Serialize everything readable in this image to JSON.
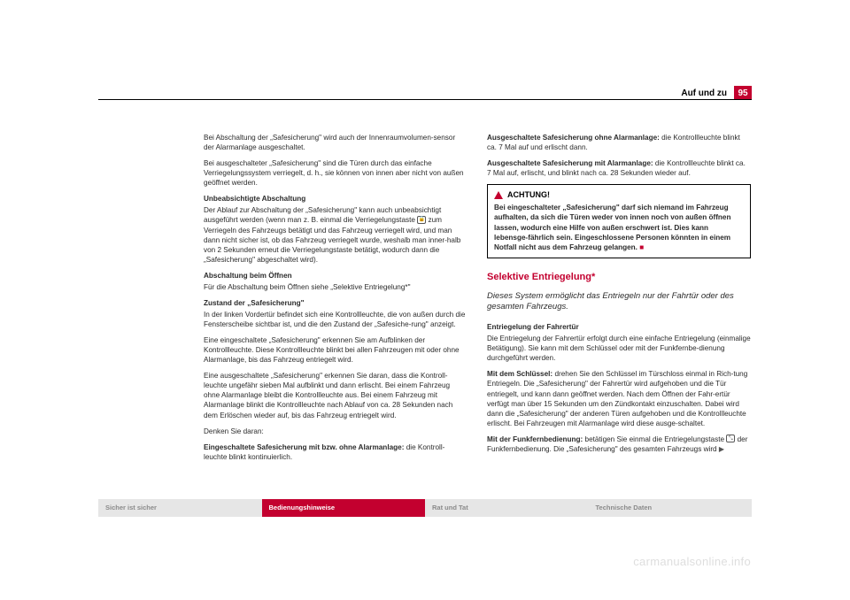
{
  "colors": {
    "brand_red": "#c3002f",
    "text": "#2b2b2b",
    "footer_gray_bg": "#e6e6e6",
    "footer_gray_text": "#8a8a8a",
    "watermark": "#dedede",
    "rule": "#000000"
  },
  "header": {
    "title": "Auf und zu",
    "page_number": "95"
  },
  "left_column": {
    "p1": "Bei Abschaltung der „Safesicherung\" wird auch der Innenraumvolumen-sensor der Alarmanlage ausgeschaltet.",
    "p2": "Bei ausgeschalteter „Safesicherung\" sind die Türen durch das einfache Verriegelungssystem verriegelt, d. h., sie können von innen aber nicht von außen geöffnet werden.",
    "h1": "Unbeabsichtigte Abschaltung",
    "p3a": "Der Ablauf zur Abschaltung der „Safesicherung\" kann auch unbeabsichtigt ausgeführt werden (wenn man z. B. einmal die Verriegelungstaste ",
    "p3b": " zum Verriegeln des Fahrzeugs betätigt und das Fahrzeug verriegelt wird, und man dann nicht sicher ist, ob das Fahrzeug verriegelt wurde, weshalb man inner-halb von 2 Sekunden erneut die Verriegelungstaste betätigt, wodurch dann die „Safesicherung\" abgeschaltet wird).",
    "h2": "Abschaltung beim Öffnen",
    "p4": "Für die Abschaltung beim Öffnen siehe „Selektive Entriegelung*\"",
    "h3": "Zustand der „Safesicherung\"",
    "p5": "In der linken Vordertür befindet sich eine Kontrollleuchte, die von außen durch die Fensterscheibe sichtbar ist, und die den Zustand der „Safesiche-rung\" anzeigt.",
    "p6": "Eine eingeschaltete „Safesicherung\" erkennen Sie am Aufblinken der Kontrollleuchte. Diese Kontrollleuchte blinkt bei allen Fahrzeugen mit oder ohne Alarmanlage, bis das Fahrzeug entriegelt wird.",
    "p7": "Eine ausgeschaltete „Safesicherung\" erkennen Sie daran, dass die Kontroll-leuchte ungefähr sieben Mal aufblinkt und dann erlischt. Bei einem Fahrzeug ohne Alarmanlage bleibt die Kontrollleuchte aus. Bei einem Fahrzeug mit Alarmanlage blinkt die Kontrollleuchte nach Ablauf von ca. 28 Sekunden nach dem Erlöschen wieder auf, bis das Fahrzeug entriegelt wird.",
    "p8": "Denken Sie daran:",
    "p9_bold": "Eingeschaltete Safesicherung mit bzw. ohne Alarmanlage:",
    "p9_rest": " die Kontroll-leuchte blinkt kontinuierlich."
  },
  "right_column": {
    "p1_bold": "Ausgeschaltete Safesicherung ohne Alarmanlage:",
    "p1_rest": " die Kontrollleuchte blinkt ca. 7 Mal auf und erlischt dann.",
    "p2_bold": "Ausgeschaltete Safesicherung mit Alarmanlage:",
    "p2_rest": " die Kontrollleuchte blinkt ca. 7 Mal auf, erlischt, und blinkt nach ca. 28 Sekunden wieder auf.",
    "warning_label": "ACHTUNG!",
    "warning_text": "Bei eingeschalteter „Safesicherung\" darf sich niemand im Fahrzeug aufhalten, da sich die Türen weder von innen noch von außen öffnen lassen, wodurch eine Hilfe von außen erschwert ist. Dies kann lebensge-fährlich sein. Eingeschlossene Personen könnten in einem Notfall nicht aus dem Fahrzeug gelangen.",
    "section_title": "Selektive Entriegelung*",
    "section_sub": "Dieses System ermöglicht das Entriegeln nur der Fahrtür oder des gesamten Fahrzeugs.",
    "h1": "Entriegelung der Fahrertür",
    "p3": "Die Entriegelung der Fahrertür erfolgt durch eine einfache Entriegelung (einmalige Betätigung). Sie kann mit dem Schlüssel oder mit der Funkfernbe-dienung durchgeführt werden.",
    "p4_bold": "Mit dem Schlüssel:",
    "p4_rest": " drehen Sie den Schlüssel im Türschloss einmal in Rich-tung Entriegeln. Die „Safesicherung\" der Fahrertür wird aufgehoben und die Tür entriegelt, und kann dann geöffnet werden. Nach dem Öffnen der Fahr-ertür verfügt man über 15 Sekunden um den Zündkontakt einzuschalten. Dabei wird dann die „Safesicherung\" der anderen Türen aufgehoben und die Kontrollleuchte erlischt. Bei Fahrzeugen mit Alarmanlage wird diese ausge-schaltet.",
    "p5_bold": "Mit der Funkfernbedienung:",
    "p5_rest_a": " betätigen Sie einmal die Entriegelungstaste ",
    "p5_rest_b": " der Funkfernbedienung. Die „Safesicherung\" des gesamten Fahrzeugs wird"
  },
  "footer": {
    "tabs": [
      {
        "label": "Sicher ist sicher",
        "active": false
      },
      {
        "label": "Bedienungshinweise",
        "active": true
      },
      {
        "label": "Rat und Tat",
        "active": false
      },
      {
        "label": "Technische Daten",
        "active": false
      }
    ]
  },
  "watermark": "carmanualsonline.info",
  "icons": {
    "lock_glyph": "🔒",
    "unlock_glyph": "⤡",
    "cont_arrow": "▶"
  }
}
